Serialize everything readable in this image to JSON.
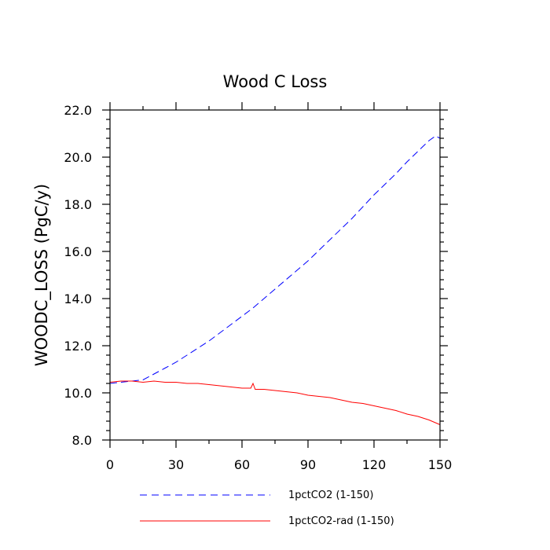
{
  "chart_data": {
    "type": "line",
    "title": "Wood C Loss",
    "xlabel": "",
    "ylabel": "WOODC_LOSS  (PgC/y)",
    "xlim": [
      0,
      150
    ],
    "ylim": [
      8.0,
      22.0
    ],
    "x_ticks": [
      0,
      30,
      60,
      90,
      120,
      150
    ],
    "x_tick_labels": [
      "0",
      "30",
      "60",
      "90",
      "120",
      "150"
    ],
    "y_ticks": [
      8.0,
      10.0,
      12.0,
      14.0,
      16.0,
      18.0,
      20.0,
      22.0
    ],
    "y_tick_labels": [
      "8.0",
      "10.0",
      "12.0",
      "14.0",
      "16.0",
      "18.0",
      "20.0",
      "22.0"
    ],
    "grid": false,
    "legend_position": "bottom",
    "series": [
      {
        "name": "1pctCO2 (1-150)",
        "color": "#0000ff",
        "style": "dashed",
        "x": [
          0,
          5,
          10,
          15,
          20,
          25,
          30,
          35,
          40,
          45,
          50,
          55,
          60,
          65,
          70,
          75,
          80,
          85,
          90,
          95,
          100,
          105,
          110,
          115,
          120,
          125,
          130,
          135,
          140,
          145,
          148,
          150
        ],
        "y": [
          10.4,
          10.45,
          10.5,
          10.55,
          10.8,
          11.05,
          11.3,
          11.6,
          11.9,
          12.2,
          12.55,
          12.9,
          13.25,
          13.6,
          14.0,
          14.4,
          14.8,
          15.2,
          15.6,
          16.05,
          16.5,
          16.95,
          17.4,
          17.9,
          18.4,
          18.85,
          19.3,
          19.8,
          20.25,
          20.7,
          20.9,
          20.8
        ]
      },
      {
        "name": "1pctCO2-rad (1-150)",
        "color": "#ff0000",
        "style": "solid",
        "x": [
          0,
          5,
          10,
          15,
          20,
          25,
          30,
          35,
          40,
          45,
          50,
          55,
          60,
          64,
          65,
          66,
          70,
          75,
          80,
          85,
          90,
          95,
          100,
          105,
          110,
          115,
          120,
          125,
          130,
          135,
          140,
          145,
          150
        ],
        "y": [
          10.45,
          10.5,
          10.5,
          10.45,
          10.5,
          10.45,
          10.45,
          10.4,
          10.4,
          10.35,
          10.3,
          10.25,
          10.2,
          10.2,
          10.4,
          10.15,
          10.15,
          10.1,
          10.05,
          10.0,
          9.9,
          9.85,
          9.8,
          9.7,
          9.6,
          9.55,
          9.45,
          9.35,
          9.25,
          9.1,
          9.0,
          8.85,
          8.65
        ]
      }
    ]
  }
}
